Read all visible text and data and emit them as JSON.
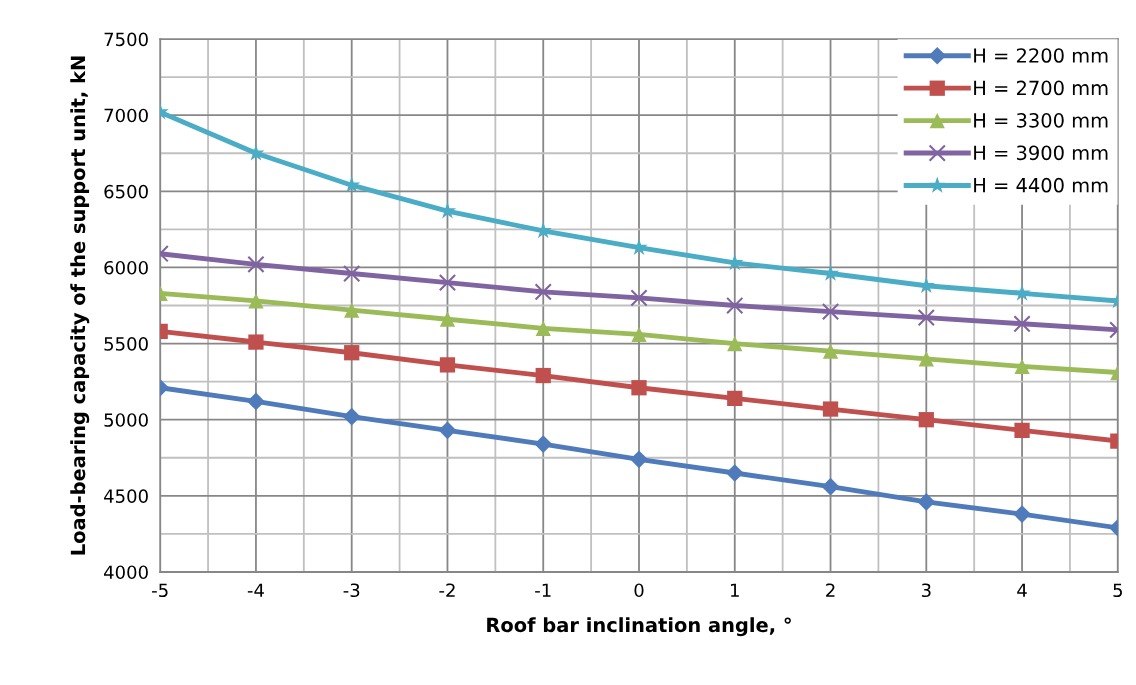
{
  "chart_data": {
    "type": "line",
    "xlabel": "Roof bar inclination angle, °",
    "ylabel": "Load-bearing capacity of the support unit, kN",
    "x": [
      -5,
      -4,
      -3,
      -2,
      -1,
      0,
      1,
      2,
      3,
      4,
      5
    ],
    "xlim": [
      -5,
      5
    ],
    "xticks": [
      -5,
      -4,
      -3,
      -2,
      -1,
      0,
      1,
      2,
      3,
      4,
      5
    ],
    "ylim": [
      4000,
      7500
    ],
    "yticks": [
      4000,
      4500,
      5000,
      5500,
      6000,
      6500,
      7000,
      7500
    ],
    "grid": true,
    "legend": "top right",
    "line_style": "solid",
    "series": [
      {
        "name": "H = 2200 mm",
        "color": "#4f7bbb",
        "marker": "diamond",
        "values": [
          5210,
          5120,
          5020,
          4930,
          4840,
          4740,
          4650,
          4560,
          4460,
          4380,
          4290
        ]
      },
      {
        "name": "H = 2700 mm",
        "color": "#c0504d",
        "marker": "square",
        "values": [
          5580,
          5510,
          5440,
          5360,
          5290,
          5210,
          5140,
          5070,
          5000,
          4930,
          4860
        ]
      },
      {
        "name": "H = 3300 mm",
        "color": "#9bbb59",
        "marker": "triangle",
        "values": [
          5830,
          5780,
          5720,
          5660,
          5600,
          5560,
          5500,
          5450,
          5400,
          5350,
          5310
        ]
      },
      {
        "name": "H = 3900 mm",
        "color": "#8064a2",
        "marker": "cross",
        "values": [
          6090,
          6020,
          5960,
          5900,
          5840,
          5800,
          5750,
          5710,
          5670,
          5630,
          5590
        ]
      },
      {
        "name": "H = 4400 mm",
        "color": "#4bacc6",
        "marker": "star",
        "values": [
          7020,
          6750,
          6540,
          6370,
          6240,
          6130,
          6030,
          5960,
          5880,
          5830,
          5780
        ]
      }
    ]
  }
}
